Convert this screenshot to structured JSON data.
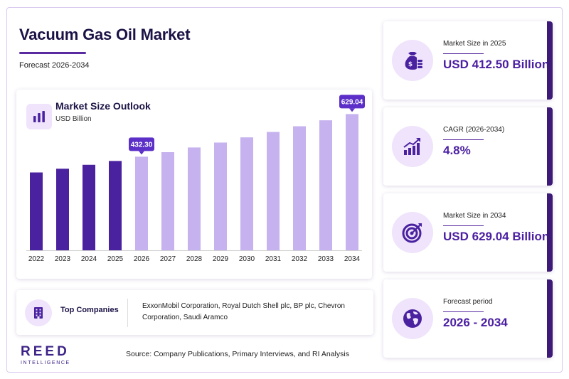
{
  "header": {
    "title": "Vacuum Gas Oil Market",
    "subtitle": "Forecast 2026-2034"
  },
  "chart_card": {
    "title": "Market Size Outlook",
    "unit": "USD Billion"
  },
  "chart_data": {
    "type": "bar",
    "title": "Market Size Outlook",
    "ylabel": "USD Billion",
    "categories": [
      "2022",
      "2023",
      "2024",
      "2025",
      "2026",
      "2027",
      "2028",
      "2029",
      "2030",
      "2031",
      "2032",
      "2033",
      "2034"
    ],
    "values": [
      359.5,
      376.7,
      394.8,
      412.5,
      432.3,
      453.1,
      474.8,
      497.6,
      521.5,
      546.5,
      572.8,
      600.3,
      629.04
    ],
    "forecast_start": "2026",
    "labeled_points": [
      {
        "category": "2026",
        "label": "432.30"
      },
      {
        "category": "2034",
        "label": "629.04"
      }
    ],
    "ylim": [
      0,
      660
    ],
    "grid": false,
    "colors": {
      "historical": "#4a22a0",
      "forecast": "#c6b2ee",
      "label_bg": "#5b2fc8"
    }
  },
  "companies": {
    "label": "Top Companies",
    "text": "ExxonMobil Corporation, Royal Dutch Shell plc, BP plc, Chevron Corporation, Saudi Aramco"
  },
  "logo": {
    "main": "REED",
    "sub": "INTELLIGENCE"
  },
  "source": "Source: Company Publications, Primary Interviews, and RI Analysis",
  "stats": [
    {
      "label": "Market Size in 2025",
      "value": "USD 412.50 Billion",
      "icon": "money-bag-icon"
    },
    {
      "label": "CAGR (2026-2034)",
      "value": "4.8%",
      "icon": "growth-chart-icon"
    },
    {
      "label": "Market Size in 2034",
      "value": "USD 629.04 Billion",
      "icon": "target-icon"
    },
    {
      "label": "Forecast period",
      "value": "2026 - 2034",
      "icon": "globe-icon"
    }
  ]
}
